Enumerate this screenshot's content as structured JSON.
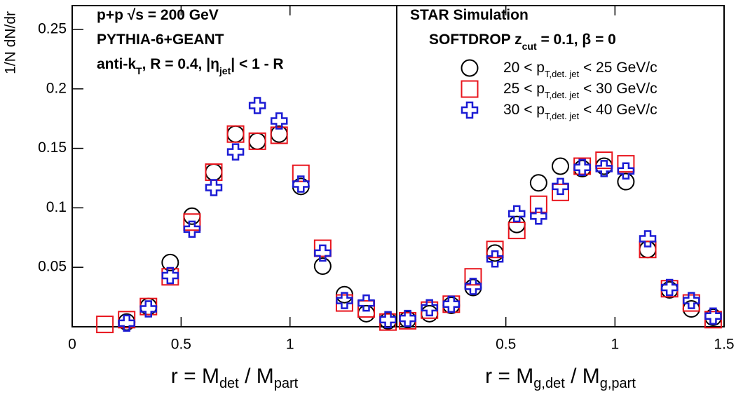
{
  "chart_data": [
    {
      "type": "scatter",
      "y_label": "1/N dN/dr",
      "x_label": [
        "r = M",
        "det",
        " / M",
        "part"
      ],
      "annotations": [
        {
          "parts": [
            "p+p  √s = 200 GeV"
          ],
          "color": "#000000"
        },
        {
          "parts": [
            "PYTHIA-6+GEANT"
          ],
          "color": "#000000"
        },
        {
          "parts": [
            "anti-k",
            "T",
            ", R = 0.4, |η",
            "jet",
            "| < 1 - R"
          ],
          "color": "#000000"
        }
      ],
      "x": [
        0.15,
        0.25,
        0.35,
        0.45,
        0.55,
        0.65,
        0.75,
        0.85,
        0.95,
        1.05,
        1.15,
        1.25,
        1.35,
        1.45
      ],
      "series": [
        {
          "name": [
            "20 < p",
            "T,det. jet",
            " < 25 GeV/c"
          ],
          "color": "#000000",
          "marker": "circle",
          "values": [
            null,
            0.004,
            0.017,
            0.054,
            0.093,
            0.13,
            0.162,
            0.156,
            0.162,
            0.118,
            0.051,
            0.027,
            0.011,
            0.005
          ]
        },
        {
          "name": [
            "25 < p",
            "T,det. jet",
            " < 30 GeV/c"
          ],
          "color": "#e8141c",
          "marker": "square",
          "values": [
            0.002,
            0.006,
            0.017,
            0.042,
            0.088,
            0.13,
            0.162,
            0.156,
            0.161,
            0.129,
            0.066,
            0.02,
            0.015,
            0.004
          ]
        },
        {
          "name": [
            "30 < p",
            "T,det. jet",
            " < 40 GeV/c"
          ],
          "color": "#1c1cd4",
          "marker": "cross",
          "values": [
            null,
            0.003,
            0.015,
            0.043,
            0.082,
            0.117,
            0.147,
            0.186,
            0.173,
            0.12,
            0.062,
            0.022,
            0.02,
            0.006
          ]
        }
      ],
      "xlim": [
        0,
        1.49
      ],
      "xticks": [
        0,
        0.5,
        1
      ],
      "ylim": [
        0,
        0.27
      ],
      "yticks": [
        0.05,
        0.1,
        0.15,
        0.2,
        0.25
      ]
    },
    {
      "type": "scatter",
      "x_label": [
        "r = M",
        "g,det",
        " / M",
        "g,part"
      ],
      "annotations": [
        {
          "parts": [
            "STAR Simulation"
          ],
          "color": "#e8141c"
        },
        {
          "parts": [
            "SOFTDROP z",
            "cut",
            " = 0.1,  β = 0"
          ],
          "color": "#000000"
        }
      ],
      "legend": "upper right",
      "x": [
        0.05,
        0.15,
        0.25,
        0.35,
        0.45,
        0.55,
        0.65,
        0.75,
        0.85,
        0.95,
        1.05,
        1.15,
        1.25,
        1.35,
        1.45
      ],
      "series": [
        {
          "name": [
            "20 < p",
            "T,det. jet",
            " < 25 GeV/c"
          ],
          "color": "#000000",
          "marker": "circle",
          "values": [
            0.006,
            0.011,
            0.018,
            0.033,
            0.062,
            0.086,
            0.121,
            0.135,
            0.133,
            0.135,
            0.122,
            0.065,
            0.031,
            0.015,
            0.008
          ]
        },
        {
          "name": [
            "25 < p",
            "T,det. jet",
            " < 30 GeV/c"
          ],
          "color": "#e8141c",
          "marker": "square",
          "values": [
            0.005,
            0.014,
            0.019,
            0.042,
            0.065,
            0.081,
            0.103,
            0.113,
            0.135,
            0.14,
            0.137,
            0.065,
            0.032,
            0.02,
            0.006
          ]
        },
        {
          "name": [
            "30 < p",
            "T,det. jet",
            " < 40 GeV/c"
          ],
          "color": "#1c1cd4",
          "marker": "cross",
          "values": [
            0.007,
            0.016,
            0.019,
            0.034,
            0.057,
            0.095,
            0.093,
            0.118,
            0.134,
            0.133,
            0.131,
            0.074,
            0.033,
            0.022,
            0.009
          ]
        }
      ],
      "xlim": [
        0,
        1.5
      ],
      "xticks": [
        0.5,
        1,
        1.5
      ],
      "ylim": [
        0,
        0.27
      ]
    }
  ]
}
